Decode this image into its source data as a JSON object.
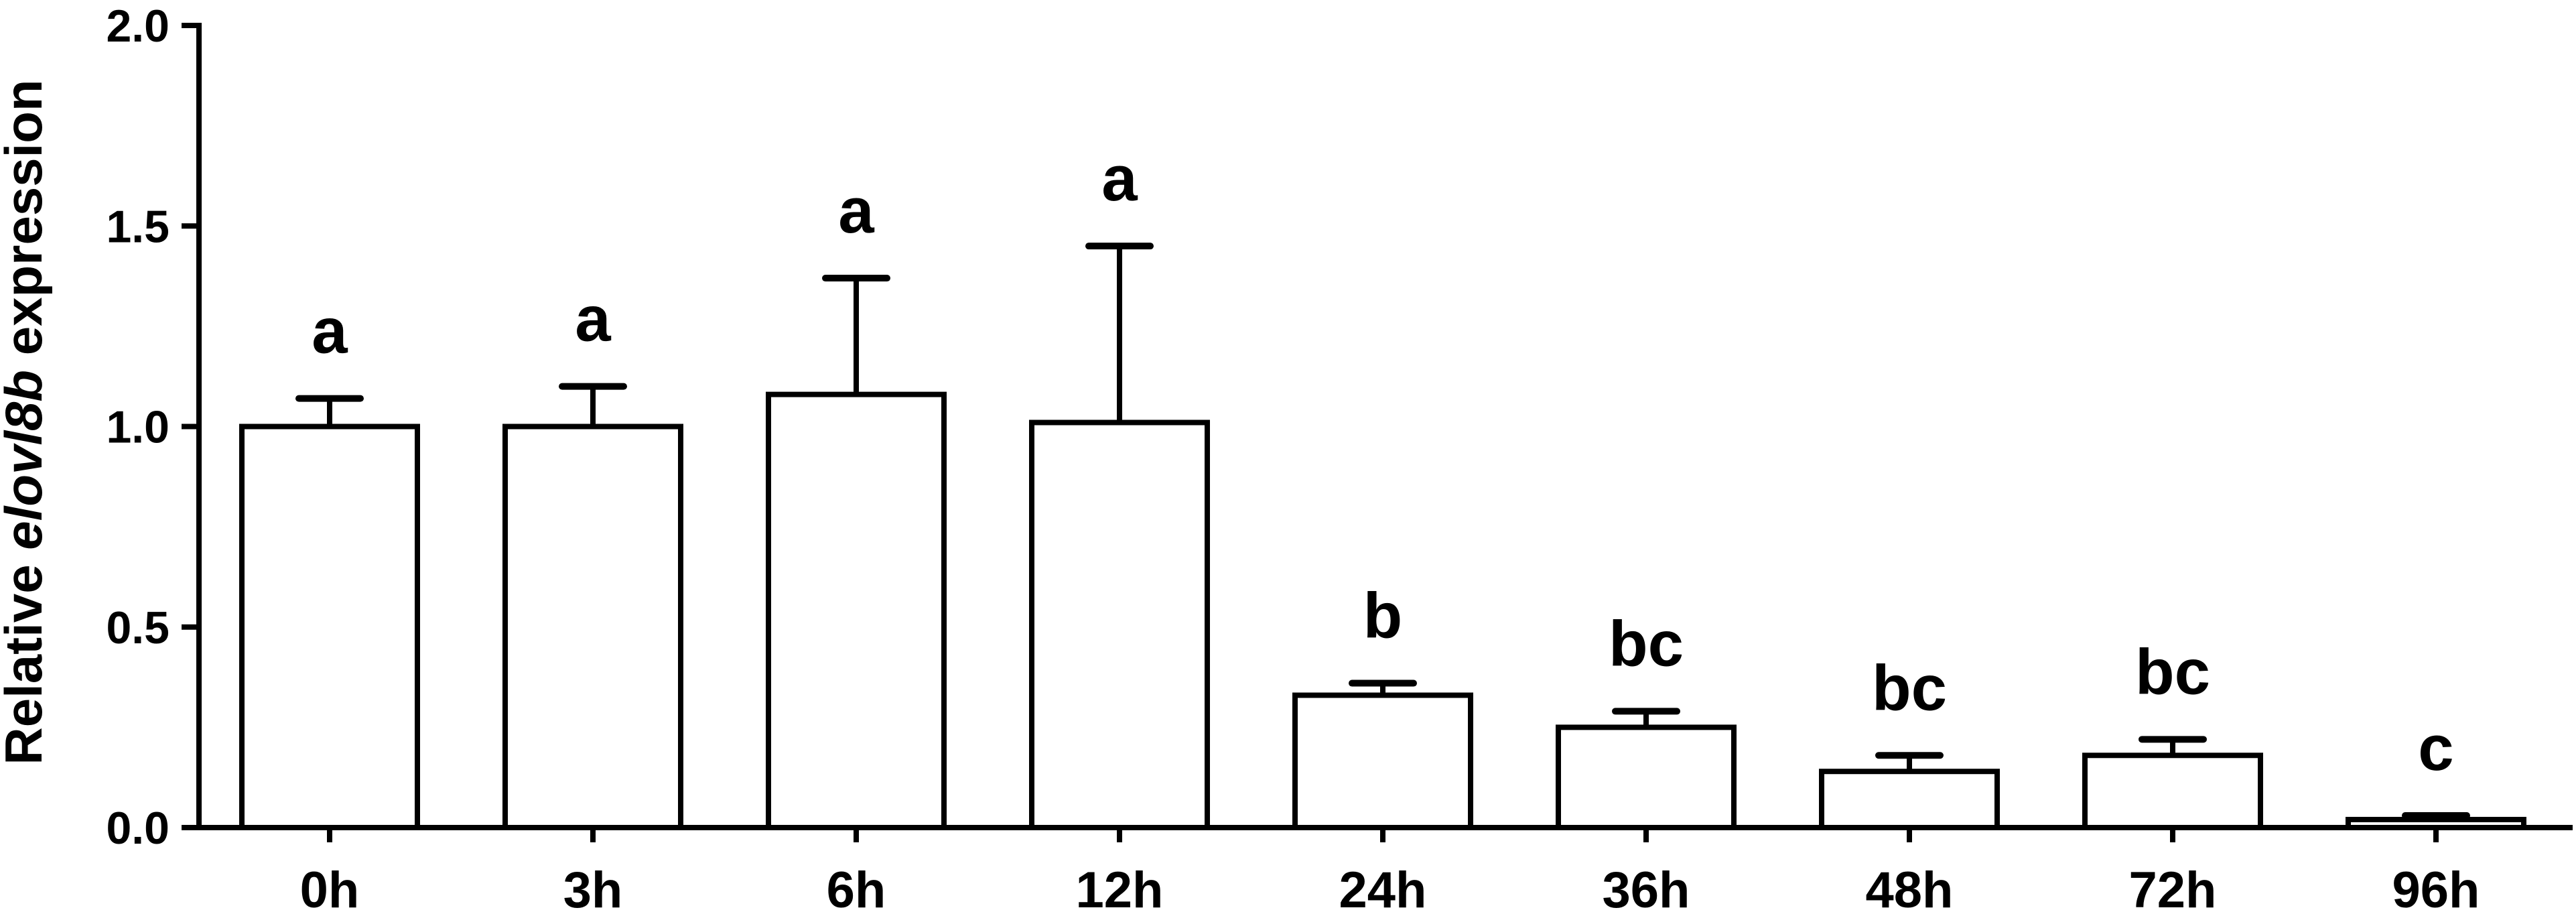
{
  "chart_data": {
    "type": "bar",
    "title": "",
    "xlabel": "",
    "ylabel": {
      "prefix": "Relative ",
      "gene": "elovl8b",
      "suffix": " expression"
    },
    "ylim": [
      0,
      2.0
    ],
    "yticks": [
      "0.0",
      "0.5",
      "1.0",
      "1.5",
      "2.0"
    ],
    "categories": [
      "0h",
      "3h",
      "6h",
      "12h",
      "24h",
      "36h",
      "48h",
      "72h",
      "96h"
    ],
    "values": [
      1.0,
      1.0,
      1.08,
      1.01,
      0.33,
      0.25,
      0.14,
      0.18,
      0.02
    ],
    "errors": [
      0.07,
      0.1,
      0.29,
      0.44,
      0.03,
      0.04,
      0.04,
      0.04,
      0.01
    ],
    "significance": [
      "a",
      "a",
      "a",
      "a",
      "b",
      "bc",
      "bc",
      "bc",
      "c"
    ],
    "grid": false,
    "bar_fill": "#ffffff",
    "bar_stroke": "#000000"
  }
}
